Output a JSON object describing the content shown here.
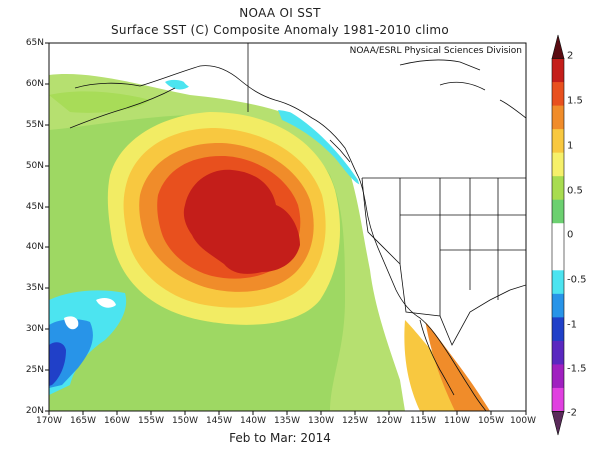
{
  "map": {
    "title": "NOAA OI SST",
    "subtitle": "Surface SST (C) Composite Anomaly 1981-2010 climo",
    "credit": "NOAA/ESRL Physical Sciences Division",
    "period": "Feb to Mar: 2014",
    "lat_labels": [
      "65N",
      "60N",
      "55N",
      "50N",
      "45N",
      "40N",
      "35N",
      "30N",
      "25N",
      "20N"
    ],
    "lon_labels": [
      "170W",
      "165W",
      "160W",
      "155W",
      "150W",
      "145W",
      "140W",
      "135W",
      "130W",
      "125W",
      "120W",
      "115W",
      "110W",
      "105W",
      "100W"
    ],
    "projection": "cylindrical equidistant",
    "bounds": {
      "lon": [
        -170,
        -100
      ],
      "lat": [
        20,
        65
      ]
    }
  },
  "colorbar": {
    "ticks": [
      "2",
      "1.5",
      "1",
      "0.5",
      "0",
      "-0.5",
      "-1",
      "-1.5",
      "-2"
    ],
    "colors": [
      "#5a0c12",
      "#c41e1a",
      "#e8501e",
      "#f08c2a",
      "#f8c840",
      "#f6f06a",
      "#a8dc50",
      "#6cd070",
      "#ffffff",
      "#ffffff",
      "#4ce4f0",
      "#2894e8",
      "#2040c8",
      "#5a28c0",
      "#a020c0",
      "#e040e0",
      "#5a2a5a"
    ]
  }
}
